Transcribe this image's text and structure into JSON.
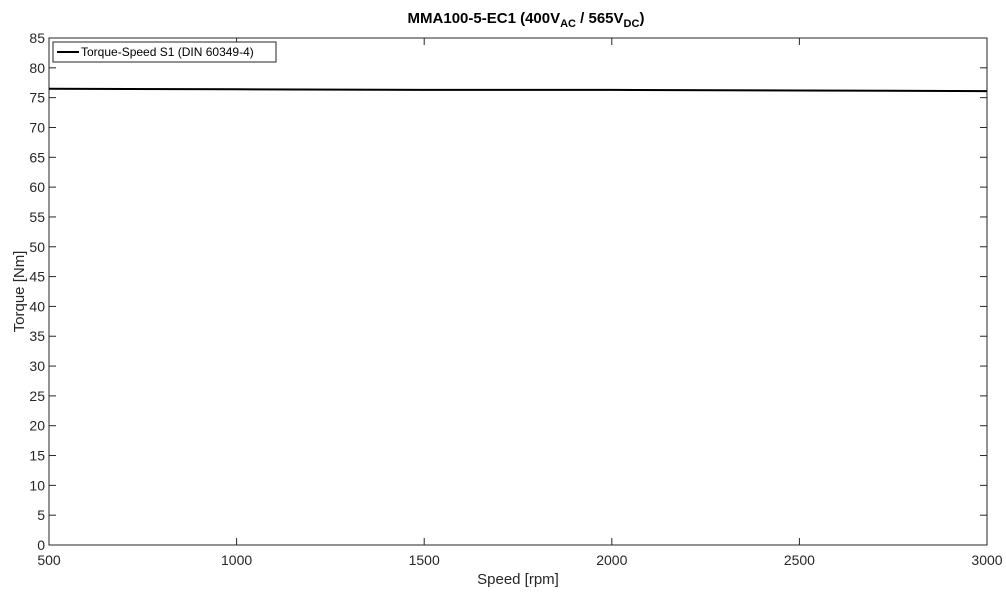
{
  "chart_data": {
    "type": "line",
    "title": {
      "main": "MMA100-5-EC1 (400V",
      "sub1": "AC",
      "mid": " / 565V",
      "sub2": "DC",
      "end": ")"
    },
    "xlabel": "Speed [rpm]",
    "ylabel": "Torque [Nm]",
    "xlim": [
      500,
      3000
    ],
    "ylim": [
      0,
      85
    ],
    "xticks": [
      500,
      1000,
      1500,
      2000,
      2500,
      3000
    ],
    "yticks": [
      0,
      5,
      10,
      15,
      20,
      25,
      30,
      35,
      40,
      45,
      50,
      55,
      60,
      65,
      70,
      75,
      80,
      85
    ],
    "grid": false,
    "legend_position": "top-left",
    "series": [
      {
        "name": "Torque-Speed S1 (DIN 60349-4)",
        "color": "#000000",
        "x": [
          500,
          1000,
          1500,
          2000,
          2500,
          3000
        ],
        "y": [
          76.5,
          76.4,
          76.3,
          76.3,
          76.2,
          76.1
        ]
      }
    ]
  }
}
